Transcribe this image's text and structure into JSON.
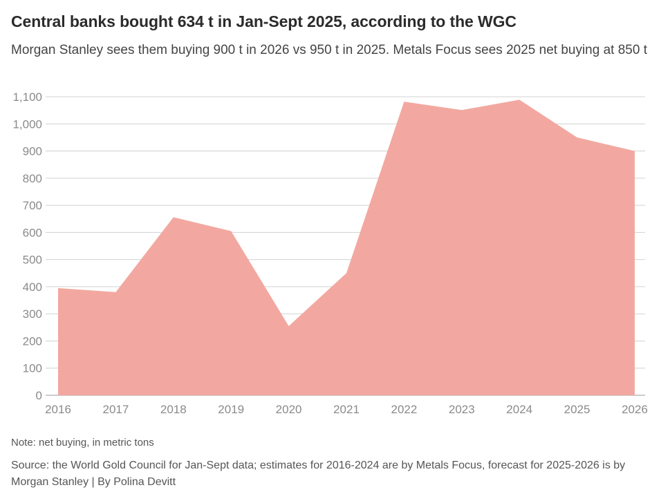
{
  "title": "Central banks bought 634 t in Jan-Sept 2025, according to the WGC",
  "subtitle": "Morgan Stanley sees them buying 900 t in 2026 vs 950 t in 2025. Metals Focus sees 2025 net buying at 850 t",
  "note": "Note: net buying, in metric tons",
  "source": "Source: the World Gold Council for Jan-Sept data; estimates for 2016-2024 are by Metals Focus, forecast for 2025-2026 is by Morgan Stanley | By Polina Devitt",
  "colors": {
    "area": "#f2a8a0",
    "grid": "#d0d0d0",
    "tick": "#8a8a8a"
  },
  "chart_data": {
    "type": "area",
    "title": "Central banks bought 634 t in Jan-Sept 2025, according to the WGC",
    "subtitle": "Morgan Stanley sees them buying 900 t in 2026 vs 950 t in 2025. Metals Focus sees 2025 net buying at 850 t",
    "xlabel": "",
    "ylabel": "",
    "x": [
      "2016",
      "2017",
      "2018",
      "2019",
      "2020",
      "2021",
      "2022",
      "2023",
      "2024",
      "2025",
      "2026"
    ],
    "series": [
      {
        "values": [
          395,
          380,
          656,
          605,
          255,
          450,
          1082,
          1051,
          1089,
          950,
          900
        ]
      }
    ],
    "ylim": [
      0,
      1100
    ],
    "yticks": [
      0,
      100,
      200,
      300,
      400,
      500,
      600,
      700,
      800,
      900,
      1000,
      1100
    ],
    "ytick_labels": [
      "0",
      "100",
      "200",
      "300",
      "400",
      "500",
      "600",
      "700",
      "800",
      "900",
      "1,000",
      "1,100"
    ],
    "grid": true,
    "legend": "none"
  }
}
